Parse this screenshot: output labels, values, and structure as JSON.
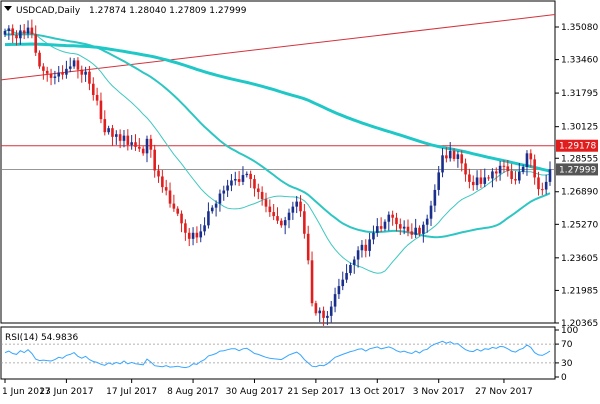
{
  "header": {
    "symbol": "USDCAD,Daily",
    "ohlc": "1.27874 1.28040 1.27809 1.27999"
  },
  "rsi_header": {
    "label": "RSI(14) 54.9836"
  },
  "colors": {
    "background": "#ffffff",
    "frame": "#000000",
    "bull_candle": "#1a2f8c",
    "bear_candle": "#e01e1e",
    "ma_fast": "#3ec8c0",
    "ma_slow": "#2dc6c2",
    "ma_thick": "#1fc7c7",
    "trendline": "#d4323b",
    "hline": "#d4323b",
    "current_price_line": "#888888",
    "price_box_red": "#e01e1e",
    "price_box_grey": "#555555",
    "rsi_line": "#38a6ff",
    "rsi_level": "#9a9a9a"
  },
  "chart_data": [
    {
      "type": "candlestick",
      "title": "USDCAD,Daily",
      "subtitle": "1.27874 1.28040 1.27809 1.27999",
      "y_ticks": [
        "1.35080",
        "1.33460",
        "1.31795",
        "1.30125",
        "1.28555",
        "1.26890",
        "1.25270",
        "1.23605",
        "1.21985",
        "1.20365"
      ],
      "ylim": [
        1.20365,
        1.3585
      ],
      "x_ticks": [
        "1 Jun 2017",
        "23 Jun 2017",
        "17 Jul 2017",
        "8 Aug 2017",
        "30 Aug 2017",
        "21 Sep 2017",
        "13 Oct 2017",
        "3 Nov 2017",
        "27 Nov 2017"
      ],
      "grid": false,
      "price_labels": [
        {
          "text": "1.29178",
          "value": 1.29178,
          "style": "red"
        },
        {
          "text": "1.27999",
          "value": 1.27999,
          "style": "grey"
        }
      ],
      "closes": [
        1.3488,
        1.3501,
        1.3468,
        1.3452,
        1.3491,
        1.3476,
        1.3505,
        1.3472,
        1.338,
        1.3312,
        1.329,
        1.3276,
        1.3255,
        1.3262,
        1.3282,
        1.3271,
        1.33,
        1.3312,
        1.3342,
        1.3296,
        1.3271,
        1.3286,
        1.3226,
        1.317,
        1.3142,
        1.305,
        1.2985,
        1.3005,
        1.2962,
        1.2975,
        1.2942,
        1.2968,
        1.2922,
        1.2935,
        1.2912,
        1.2903,
        1.288,
        1.2952,
        1.2898,
        1.2795,
        1.2765,
        1.2712,
        1.2695,
        1.263,
        1.2605,
        1.258,
        1.2532,
        1.2485,
        1.2455,
        1.2485,
        1.2462,
        1.2492,
        1.2522,
        1.2592,
        1.261,
        1.263,
        1.268,
        1.2695,
        1.272,
        1.2745,
        1.2752,
        1.2738,
        1.2772,
        1.2778,
        1.2752,
        1.2705,
        1.2688,
        1.2652,
        1.2615,
        1.2588,
        1.2568,
        1.2545,
        1.2522,
        1.2548,
        1.2585,
        1.2615,
        1.264,
        1.2592,
        1.248,
        1.2348,
        1.2135,
        1.2085,
        1.2098,
        1.2062,
        1.2072,
        1.2118,
        1.218,
        1.222,
        1.2252,
        1.2285,
        1.2325,
        1.2352,
        1.2398,
        1.2425,
        1.2395,
        1.2452,
        1.2485,
        1.2518,
        1.2505,
        1.254,
        1.2575,
        1.256,
        1.2528,
        1.2506,
        1.2515,
        1.2492,
        1.2475,
        1.251,
        1.248,
        1.2525,
        1.2555,
        1.262,
        1.2698,
        1.2785,
        1.287,
        1.2855,
        1.2892,
        1.2852,
        1.2875,
        1.283,
        1.2775,
        1.2738,
        1.2722,
        1.276,
        1.2728,
        1.276,
        1.2755,
        1.279,
        1.278,
        1.2818,
        1.2815,
        1.2792,
        1.2752,
        1.2745,
        1.2788,
        1.2812,
        1.288,
        1.285,
        1.276,
        1.2702,
        1.27,
        1.2738,
        1.28
      ],
      "series": [
        {
          "name": "",
          "period": 20
        },
        {
          "name": "",
          "period": 50
        },
        {
          "name": "",
          "period": 150
        }
      ],
      "trendline": {
        "from": {
          "x": "1 Jun 2017",
          "y": 1.3245
        },
        "to": {
          "x": "5 Dec 2017",
          "y": 1.357
        }
      },
      "horizontal_level": 1.29178
    },
    {
      "type": "line",
      "title": "RSI(14) 54.9836",
      "y_ticks": [
        "100",
        "70",
        "30",
        "0"
      ],
      "ylim": [
        0,
        100
      ],
      "levels": [
        70,
        30
      ],
      "values": [
        52,
        55,
        50,
        48,
        56,
        52,
        58,
        50,
        38,
        35,
        36,
        35,
        34,
        37,
        42,
        40,
        46,
        48,
        52,
        44,
        40,
        44,
        37,
        33,
        31,
        27,
        25,
        30,
        27,
        31,
        28,
        34,
        28,
        31,
        28,
        27,
        26,
        38,
        32,
        24,
        23,
        22,
        24,
        21,
        22,
        23,
        21,
        20,
        22,
        28,
        27,
        33,
        37,
        45,
        47,
        50,
        55,
        56,
        58,
        60,
        60,
        56,
        60,
        61,
        56,
        50,
        48,
        45,
        42,
        40,
        39,
        38,
        37,
        42,
        47,
        50,
        53,
        47,
        37,
        30,
        23,
        22,
        25,
        24,
        28,
        35,
        42,
        45,
        48,
        51,
        54,
        56,
        59,
        60,
        55,
        60,
        62,
        64,
        60,
        62,
        64,
        61,
        56,
        53,
        55,
        52,
        50,
        55,
        51,
        57,
        59,
        66,
        70,
        73,
        76,
        72,
        75,
        70,
        71,
        64,
        58,
        55,
        54,
        59,
        55,
        60,
        59,
        63,
        61,
        65,
        64,
        60,
        55,
        53,
        58,
        61,
        68,
        63,
        52,
        47,
        46,
        50,
        55
      ]
    }
  ]
}
